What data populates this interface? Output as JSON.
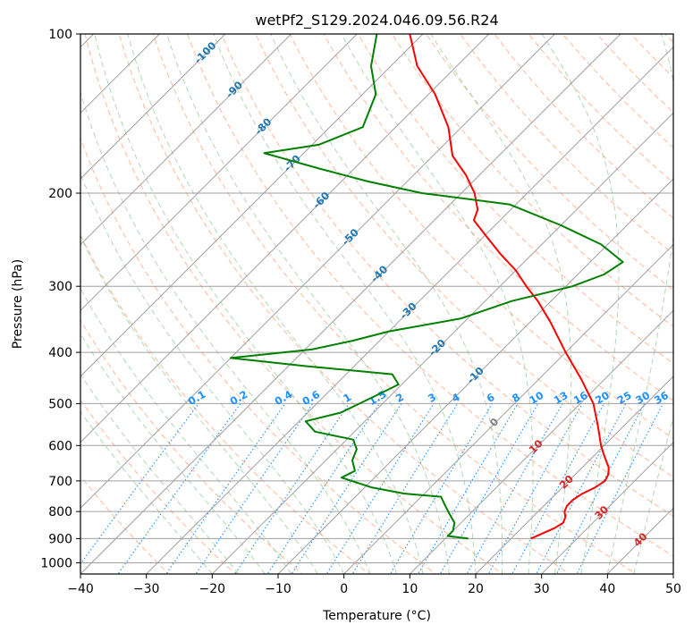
{
  "chart_data": {
    "type": "line",
    "title": "wetPf2_S129.2024.046.09.56.R24",
    "xlabel": "Temperature (°C)",
    "ylabel": "Pressure (hPa)",
    "xlim": [
      -40,
      50
    ],
    "ylim": [
      1050,
      100
    ],
    "y_scale": "log",
    "skew": true,
    "grid": true,
    "x_ticks": [
      -40,
      -30,
      -20,
      -10,
      0,
      10,
      20,
      30,
      40,
      50
    ],
    "y_ticks": [
      100,
      200,
      300,
      400,
      500,
      600,
      700,
      800,
      900,
      1000
    ],
    "series": [
      {
        "role": "temperature",
        "color": "#ff0000",
        "points": [
          {
            "p": 900,
            "t": 23.0
          },
          {
            "p": 880,
            "t": 24.0
          },
          {
            "p": 860,
            "t": 25.0
          },
          {
            "p": 840,
            "t": 25.5
          },
          {
            "p": 820,
            "t": 25.0
          },
          {
            "p": 800,
            "t": 24.0
          },
          {
            "p": 780,
            "t": 23.5
          },
          {
            "p": 760,
            "t": 23.5
          },
          {
            "p": 740,
            "t": 24.0
          },
          {
            "p": 720,
            "t": 25.0
          },
          {
            "p": 700,
            "t": 25.5
          },
          {
            "p": 680,
            "t": 25.0
          },
          {
            "p": 660,
            "t": 24.0
          },
          {
            "p": 640,
            "t": 22.5
          },
          {
            "p": 620,
            "t": 21.0
          },
          {
            "p": 600,
            "t": 19.5
          },
          {
            "p": 550,
            "t": 16.0
          },
          {
            "p": 500,
            "t": 12.0
          },
          {
            "p": 450,
            "t": 6.5
          },
          {
            "p": 400,
            "t": 0.0
          },
          {
            "p": 350,
            "t": -7.0
          },
          {
            "p": 320,
            "t": -12.0
          },
          {
            "p": 300,
            "t": -16.0
          },
          {
            "p": 280,
            "t": -20.0
          },
          {
            "p": 260,
            "t": -25.0
          },
          {
            "p": 240,
            "t": -30.0
          },
          {
            "p": 225,
            "t": -34.0
          },
          {
            "p": 215,
            "t": -35.0
          },
          {
            "p": 200,
            "t": -38.0
          },
          {
            "p": 185,
            "t": -42.0
          },
          {
            "p": 170,
            "t": -47.0
          },
          {
            "p": 150,
            "t": -52.0
          },
          {
            "p": 130,
            "t": -59.0
          },
          {
            "p": 115,
            "t": -66.0
          },
          {
            "p": 100,
            "t": -72.0
          }
        ]
      },
      {
        "role": "dewpoint",
        "color": "#008000",
        "points": [
          {
            "p": 900,
            "t": 13.5
          },
          {
            "p": 890,
            "t": 10.0
          },
          {
            "p": 870,
            "t": 10.0
          },
          {
            "p": 840,
            "t": 9.0
          },
          {
            "p": 810,
            "t": 7.0
          },
          {
            "p": 780,
            "t": 5.0
          },
          {
            "p": 750,
            "t": 3.0
          },
          {
            "p": 740,
            "t": -3.0
          },
          {
            "p": 720,
            "t": -9.0
          },
          {
            "p": 690,
            "t": -15.0
          },
          {
            "p": 670,
            "t": -14.0
          },
          {
            "p": 640,
            "t": -16.0
          },
          {
            "p": 610,
            "t": -17.0
          },
          {
            "p": 585,
            "t": -19.0
          },
          {
            "p": 565,
            "t": -26.0
          },
          {
            "p": 540,
            "t": -29.0
          },
          {
            "p": 520,
            "t": -25.0
          },
          {
            "p": 500,
            "t": -23.5
          },
          {
            "p": 480,
            "t": -22.0
          },
          {
            "p": 460,
            "t": -20.5
          },
          {
            "p": 440,
            "t": -23.0
          },
          {
            "p": 425,
            "t": -37.0
          },
          {
            "p": 410,
            "t": -50.0
          },
          {
            "p": 395,
            "t": -39.0
          },
          {
            "p": 380,
            "t": -34.0
          },
          {
            "p": 365,
            "t": -30.0
          },
          {
            "p": 345,
            "t": -21.0
          },
          {
            "p": 320,
            "t": -16.0
          },
          {
            "p": 300,
            "t": -9.0
          },
          {
            "p": 285,
            "t": -6.0
          },
          {
            "p": 270,
            "t": -5.0
          },
          {
            "p": 250,
            "t": -11.0
          },
          {
            "p": 230,
            "t": -20.0
          },
          {
            "p": 210,
            "t": -31.0
          },
          {
            "p": 200,
            "t": -46.0
          },
          {
            "p": 190,
            "t": -56.0
          },
          {
            "p": 180,
            "t": -65.0
          },
          {
            "p": 168,
            "t": -76.0
          },
          {
            "p": 162,
            "t": -69.0
          },
          {
            "p": 150,
            "t": -65.0
          },
          {
            "p": 130,
            "t": -68.0
          },
          {
            "p": 115,
            "t": -73.0
          },
          {
            "p": 100,
            "t": -77.0
          }
        ]
      }
    ],
    "isotherm_labels": [
      {
        "t": -100,
        "text": "-100"
      },
      {
        "t": -90,
        "text": "-90"
      },
      {
        "t": -80,
        "text": "-80"
      },
      {
        "t": -70,
        "text": "-70"
      },
      {
        "t": -60,
        "text": "-60"
      },
      {
        "t": -50,
        "text": "-50"
      },
      {
        "t": -40,
        "text": "-40"
      },
      {
        "t": -30,
        "text": "-30"
      },
      {
        "t": -20,
        "text": "-20"
      },
      {
        "t": -10,
        "text": "-10"
      },
      {
        "t": 0,
        "text": "0"
      },
      {
        "t": 10,
        "text": "10"
      },
      {
        "t": 20,
        "text": "20"
      },
      {
        "t": 30,
        "text": "30"
      },
      {
        "t": 40,
        "text": "40"
      }
    ],
    "mixing_ratio_labels": [
      "0.1",
      "0.2",
      "0.4",
      "0.6",
      "1",
      "1.5",
      "2",
      "3",
      "4",
      "6",
      "8",
      "10",
      "13",
      "16",
      "20",
      "25",
      "30",
      "36"
    ],
    "colors": {
      "isotherm": "#a0a0a0",
      "isobar": "#a0a0a0",
      "dry_adiabat": "#ffa07a",
      "moist_adiabat": "#90c890",
      "mixing_ratio": "#1e90ff",
      "isotherm_label_cold": "#1f77b4",
      "isotherm_label_zero": "#808080",
      "isotherm_label_warm": "#d62728",
      "mixing_label": "#1e90ff"
    }
  }
}
